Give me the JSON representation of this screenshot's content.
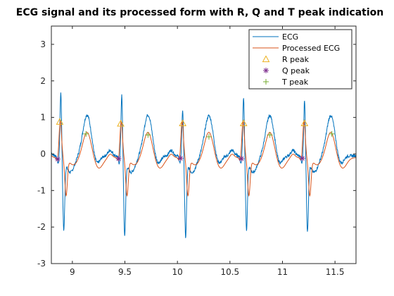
{
  "chart_data": {
    "type": "line",
    "title": "ECG signal and its processed form with R, Q and T peak indication",
    "xlabel": "",
    "ylabel": "",
    "xlim": [
      8.8,
      11.7
    ],
    "ylim": [
      -3,
      3.5
    ],
    "xticks": [
      9,
      9.5,
      10,
      10.5,
      11,
      11.5
    ],
    "xtick_labels": [
      "9",
      "9.5",
      "10",
      "10.5",
      "11",
      "11.5"
    ],
    "yticks": [
      -3,
      -2,
      -1,
      0,
      1,
      2,
      3
    ],
    "ytick_labels": [
      "-3",
      "-2",
      "-1",
      "0",
      "1",
      "2",
      "3"
    ],
    "grid": false,
    "legend_position": "top-right",
    "beats": {
      "r_times": [
        8.89,
        9.47,
        10.05,
        10.63,
        11.21
      ],
      "ecg_r_amplitudes": [
        1.78,
        1.7,
        1.3,
        1.65,
        1.55
      ],
      "ecg_s_amplitudes": [
        -1.9,
        -2.05,
        -2.1,
        -1.9,
        -1.95
      ],
      "t_amplitudes": [
        1.12,
        1.12,
        1.1,
        1.1,
        1.1
      ]
    },
    "series": [
      {
        "name": "ECG",
        "color": "#0072BD",
        "kind": "line"
      },
      {
        "name": "Processed ECG",
        "color": "#D95319",
        "kind": "line"
      },
      {
        "name": "R peak",
        "color": "#EDB120",
        "kind": "marker",
        "marker": "triangle",
        "x": [
          8.88,
          9.46,
          10.05,
          10.63,
          11.21
        ],
        "y": [
          0.88,
          0.83,
          0.84,
          0.84,
          0.84
        ]
      },
      {
        "name": "Q peak",
        "color": "#7E2F8E",
        "kind": "marker",
        "marker": "asterisk",
        "x": [
          8.86,
          9.44,
          10.03,
          10.61,
          11.19
        ],
        "y": [
          -0.14,
          -0.13,
          -0.12,
          -0.13,
          -0.12
        ]
      },
      {
        "name": "T peak",
        "color": "#77AC30",
        "kind": "marker",
        "marker": "plus",
        "x": [
          9.13,
          9.72,
          10.3,
          10.88,
          11.47
        ],
        "y": [
          0.55,
          0.52,
          0.47,
          0.52,
          0.55
        ]
      }
    ]
  }
}
